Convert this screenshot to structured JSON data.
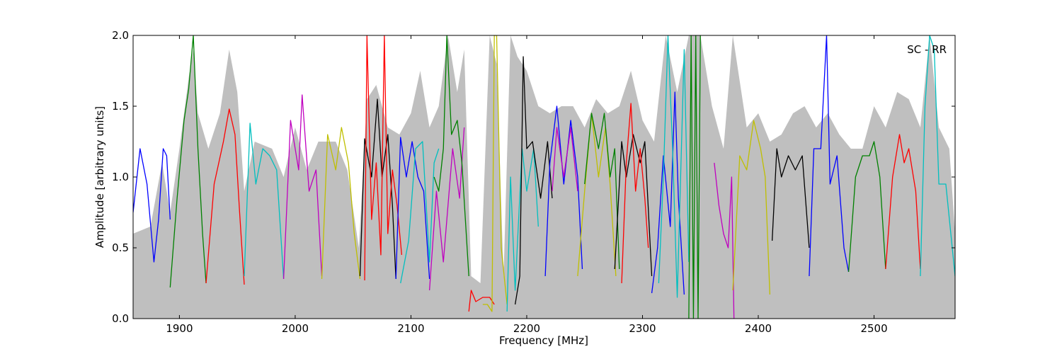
{
  "chart_data": {
    "type": "line",
    "title": "",
    "annotation": "SC - RR",
    "xlabel": "Frequency [MHz]",
    "ylabel": "Amplitude [arbitrary units]",
    "xlim": [
      1860,
      2570
    ],
    "ylim": [
      0.0,
      2.0
    ],
    "xticks": [
      1900,
      2000,
      2100,
      2200,
      2300,
      2400,
      2500
    ],
    "xtick_labels": [
      "1900",
      "2000",
      "2100",
      "2200",
      "2300",
      "2400",
      "2500"
    ],
    "yticks": [
      0.0,
      0.5,
      1.0,
      1.5,
      2.0
    ],
    "ytick_labels": [
      "0.0",
      "0.5",
      "1.0",
      "1.5",
      "2.0"
    ],
    "grid": false,
    "envelope": {
      "color": "#bfbfbf",
      "x": [
        1860,
        1875,
        1885,
        1892,
        1900,
        1908,
        1912,
        1916,
        1925,
        1935,
        1943,
        1950,
        1956,
        1965,
        1980,
        1990,
        2000,
        2010,
        2020,
        2035,
        2045,
        2055,
        2062,
        2070,
        2080,
        2090,
        2100,
        2108,
        2116,
        2124,
        2132,
        2140,
        2146,
        2152,
        2160,
        2168,
        2174,
        2180,
        2186,
        2192,
        2200,
        2210,
        2220,
        2230,
        2240,
        2250,
        2260,
        2270,
        2280,
        2290,
        2300,
        2310,
        2320,
        2330,
        2340,
        2350,
        2360,
        2370,
        2378,
        2390,
        2400,
        2410,
        2420,
        2430,
        2440,
        2450,
        2460,
        2470,
        2480,
        2490,
        2500,
        2510,
        2520,
        2530,
        2540,
        2548,
        2556,
        2565,
        2570
      ],
      "y": [
        0.6,
        0.65,
        1.1,
        0.75,
        1.2,
        1.7,
        1.9,
        1.45,
        1.2,
        1.45,
        1.9,
        1.6,
        0.9,
        1.25,
        1.2,
        1.0,
        1.35,
        1.05,
        1.25,
        1.25,
        1.05,
        0.5,
        1.55,
        1.65,
        1.35,
        1.3,
        1.45,
        1.75,
        1.35,
        1.5,
        2.0,
        1.6,
        1.9,
        0.3,
        0.25,
        2.0,
        1.8,
        0.3,
        2.0,
        1.85,
        1.75,
        1.5,
        1.45,
        1.5,
        1.5,
        1.35,
        1.55,
        1.45,
        1.5,
        1.75,
        1.4,
        1.25,
        2.0,
        1.6,
        2.0,
        2.0,
        1.5,
        1.2,
        2.0,
        1.35,
        1.45,
        1.25,
        1.3,
        1.45,
        1.5,
        1.35,
        1.45,
        1.3,
        1.2,
        1.2,
        1.5,
        1.35,
        1.6,
        1.55,
        1.35,
        2.0,
        1.35,
        1.2,
        0.6
      ]
    },
    "series": [
      {
        "color": "#0000ff",
        "x": [
          1860,
          1866,
          1872,
          1878,
          1882,
          1886,
          1889,
          1892
        ],
        "y": [
          0.75,
          1.2,
          0.95,
          0.4,
          0.7,
          1.2,
          1.15,
          0.7
        ]
      },
      {
        "color": "#008000",
        "x": [
          1892,
          1898,
          1904,
          1908,
          1912,
          1916,
          1920,
          1923
        ],
        "y": [
          0.22,
          0.85,
          1.4,
          1.62,
          2.0,
          1.2,
          0.6,
          0.25
        ]
      },
      {
        "color": "#ff0000",
        "x": [
          1923,
          1930,
          1938,
          1943,
          1948,
          1952,
          1956
        ],
        "y": [
          0.25,
          0.95,
          1.25,
          1.48,
          1.3,
          0.75,
          0.24
        ]
      },
      {
        "color": "#00bfbf",
        "x": [
          1956,
          1961,
          1966,
          1972,
          1978,
          1984,
          1990
        ],
        "y": [
          0.3,
          1.38,
          0.95,
          1.2,
          1.15,
          1.05,
          0.28
        ]
      },
      {
        "color": "#bf00bf",
        "x": [
          1990,
          1996,
          2003,
          2006,
          2012,
          2018,
          2023
        ],
        "y": [
          0.28,
          1.4,
          1.05,
          1.58,
          0.9,
          1.05,
          0.3
        ]
      },
      {
        "color": "#bfbf00",
        "x": [
          2023,
          2028,
          2035,
          2040,
          2046,
          2051,
          2056
        ],
        "y": [
          0.28,
          1.3,
          1.05,
          1.35,
          1.1,
          0.6,
          0.28
        ]
      },
      {
        "color": "#000000",
        "x": [
          2056,
          2060,
          2066,
          2071,
          2075,
          2080,
          2084,
          2087
        ],
        "y": [
          0.3,
          1.27,
          1.0,
          1.55,
          1.0,
          1.3,
          0.8,
          0.28
        ]
      },
      {
        "color": "#ff0000",
        "x": [
          2060,
          2062,
          2066,
          2070,
          2074,
          2077,
          2080,
          2084,
          2088,
          2092
        ],
        "y": [
          0.27,
          2.0,
          0.7,
          1.1,
          0.45,
          2.0,
          0.6,
          1.05,
          0.8,
          0.45
        ]
      },
      {
        "color": "#0000ff",
        "x": [
          2087,
          2091,
          2096,
          2101,
          2106,
          2111,
          2116
        ],
        "y": [
          0.28,
          1.28,
          1.0,
          1.25,
          1.0,
          0.9,
          0.28
        ]
      },
      {
        "color": "#00bfbf",
        "x": [
          2091,
          2098,
          2104,
          2110,
          2116,
          2120,
          2124
        ],
        "y": [
          0.25,
          0.55,
          1.2,
          1.25,
          0.4,
          1.1,
          1.2
        ]
      },
      {
        "color": "#bf00bf",
        "x": [
          2116,
          2122,
          2128,
          2136,
          2142,
          2146
        ],
        "y": [
          0.2,
          0.9,
          0.4,
          1.2,
          0.85,
          1.35
        ]
      },
      {
        "color": "#008000",
        "x": [
          2120,
          2124,
          2128,
          2131,
          2135,
          2140,
          2144,
          2150
        ],
        "y": [
          1.0,
          0.9,
          1.2,
          2.0,
          1.3,
          1.4,
          1.1,
          0.3
        ]
      },
      {
        "color": "#ff0000",
        "x": [
          2150,
          2152,
          2156,
          2162,
          2168,
          2172
        ],
        "y": [
          0.05,
          0.2,
          0.12,
          0.15,
          0.15,
          0.1
        ]
      },
      {
        "color": "#bfbf00",
        "x": [
          2162,
          2166,
          2170,
          2172,
          2174,
          2178,
          2183
        ],
        "y": [
          0.1,
          0.1,
          0.05,
          2.0,
          2.0,
          0.5,
          0.1
        ]
      },
      {
        "color": "#00bfbf",
        "x": [
          2183,
          2186,
          2190,
          2196,
          2200,
          2206,
          2210
        ],
        "y": [
          0.05,
          1.0,
          0.2,
          1.2,
          0.9,
          1.2,
          0.65
        ]
      },
      {
        "color": "#000000",
        "x": [
          2190,
          2194,
          2197,
          2200,
          2205,
          2212,
          2218,
          2222
        ],
        "y": [
          0.1,
          0.3,
          1.85,
          1.2,
          1.25,
          0.85,
          1.25,
          0.85
        ]
      },
      {
        "color": "#0000ff",
        "x": [
          2216,
          2220,
          2226,
          2232,
          2238,
          2244,
          2248
        ],
        "y": [
          0.3,
          1.1,
          1.5,
          0.95,
          1.4,
          1.0,
          0.35
        ]
      },
      {
        "color": "#bf00bf",
        "x": [
          2222,
          2226,
          2232,
          2238,
          2244
        ],
        "y": [
          0.9,
          1.35,
          1.0,
          1.35,
          0.9
        ]
      },
      {
        "color": "#bfbf00",
        "x": [
          2244,
          2250,
          2256,
          2262,
          2268,
          2272,
          2277
        ],
        "y": [
          0.3,
          0.9,
          1.45,
          1.0,
          1.35,
          0.95,
          0.3
        ]
      },
      {
        "color": "#008000",
        "x": [
          2250,
          2256,
          2262,
          2267,
          2272,
          2276,
          2280
        ],
        "y": [
          0.95,
          1.45,
          1.2,
          1.45,
          1.0,
          1.2,
          0.35
        ]
      },
      {
        "color": "#000000",
        "x": [
          2276,
          2282,
          2286,
          2292,
          2298,
          2302,
          2308
        ],
        "y": [
          0.35,
          1.25,
          1.0,
          1.3,
          1.1,
          1.25,
          0.3
        ]
      },
      {
        "color": "#ff0000",
        "x": [
          2282,
          2286,
          2290,
          2294,
          2298,
          2302,
          2305
        ],
        "y": [
          0.25,
          1.1,
          1.52,
          0.9,
          1.2,
          0.85,
          0.5
        ]
      },
      {
        "color": "#0000ff",
        "x": [
          2308,
          2313,
          2318,
          2324,
          2328,
          2331,
          2336
        ],
        "y": [
          0.18,
          0.5,
          1.15,
          0.65,
          1.6,
          0.85,
          0.17
        ]
      },
      {
        "color": "#00bfbf",
        "x": [
          2314,
          2318,
          2322,
          2326,
          2330,
          2336,
          2340
        ],
        "y": [
          0.25,
          1.0,
          2.0,
          1.2,
          0.15,
          1.9,
          0.4
        ]
      },
      {
        "color": "#008000",
        "x": [
          2340,
          2342,
          2344,
          2346,
          2348,
          2350
        ],
        "y": [
          0.0,
          2.0,
          0.0,
          2.0,
          0.0,
          2.0
        ]
      },
      {
        "color": "#bf00bf",
        "x": [
          2362,
          2366,
          2370,
          2374,
          2377,
          2379
        ],
        "y": [
          1.1,
          0.8,
          0.6,
          0.5,
          1.0,
          0.0
        ]
      },
      {
        "color": "#bfbf00",
        "x": [
          2378,
          2384,
          2390,
          2396,
          2402,
          2406,
          2410
        ],
        "y": [
          0.2,
          1.15,
          1.05,
          1.4,
          1.2,
          1.0,
          0.17
        ]
      },
      {
        "color": "#000000",
        "x": [
          2412,
          2416,
          2420,
          2426,
          2432,
          2438,
          2444
        ],
        "y": [
          0.55,
          1.2,
          1.0,
          1.15,
          1.05,
          1.15,
          0.5
        ]
      },
      {
        "color": "#0000ff",
        "x": [
          2444,
          2448,
          2454,
          2459,
          2462,
          2468,
          2474,
          2478
        ],
        "y": [
          0.3,
          1.2,
          1.2,
          2.0,
          0.95,
          1.15,
          0.5,
          0.33
        ]
      },
      {
        "color": "#008000",
        "x": [
          2478,
          2484,
          2490,
          2496,
          2500,
          2505,
          2510
        ],
        "y": [
          0.33,
          1.0,
          1.15,
          1.15,
          1.25,
          1.0,
          0.35
        ]
      },
      {
        "color": "#ff0000",
        "x": [
          2510,
          2516,
          2522,
          2526,
          2530,
          2536,
          2540
        ],
        "y": [
          0.35,
          1.0,
          1.3,
          1.1,
          1.2,
          0.9,
          0.35
        ]
      },
      {
        "color": "#00bfbf",
        "x": [
          2540,
          2544,
          2548,
          2552,
          2556,
          2562,
          2570
        ],
        "y": [
          0.3,
          1.5,
          2.0,
          1.9,
          0.95,
          0.95,
          0.3
        ]
      }
    ]
  }
}
